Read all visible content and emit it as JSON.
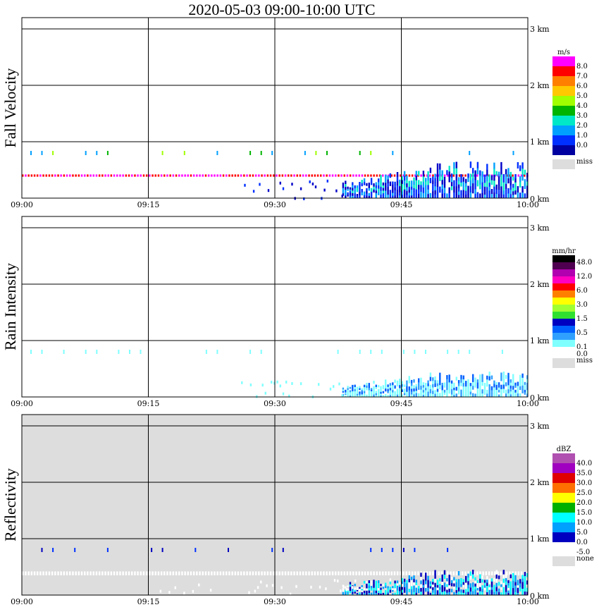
{
  "title": "2020-05-03   09:00-10:00 UTC",
  "chart_data": [
    {
      "type": "heatmap",
      "panel_title": "Fall Velocity",
      "x_ticks": [
        "09:00",
        "09:15",
        "09:30",
        "09:45",
        "10:00"
      ],
      "y_ticks": [
        "1 km",
        "2 km",
        "3 km"
      ],
      "y_zero_tick": "0 km",
      "unit": "m/s",
      "colorbar": [
        {
          "label": "8.0",
          "color": "#ff00ff"
        },
        {
          "label": "7.0",
          "color": "#ff0000"
        },
        {
          "label": "6.0",
          "color": "#ff7f00"
        },
        {
          "label": "5.0",
          "color": "#ffc800"
        },
        {
          "label": "4.0",
          "color": "#a0ff00"
        },
        {
          "label": "3.0",
          "color": "#00b400"
        },
        {
          "label": "2.0",
          "color": "#00e8c8"
        },
        {
          "label": "1.0",
          "color": "#00a0ff"
        },
        {
          "label": "0.0",
          "color": "#0030ff"
        },
        {
          "label": "",
          "color": "#0000a0"
        }
      ],
      "miss_label": "miss",
      "features": [
        {
          "kind": "band",
          "t0": 0,
          "t1": 60,
          "z0": 0.38,
          "z1": 0.42,
          "colors": [
            "#ff00ff",
            "#ff0000"
          ]
        },
        {
          "kind": "speckles",
          "t0": 1,
          "t1": 59,
          "z": 0.8,
          "colors": [
            "#a0ff00",
            "#00b400",
            "#00a0ff"
          ]
        },
        {
          "kind": "precip",
          "t0": 38,
          "t1": 60,
          "ztop": 0.65,
          "colors": [
            "#0000c8",
            "#0030ff",
            "#00a0ff",
            "#00e8c8"
          ]
        },
        {
          "kind": "scatter",
          "t0": 26,
          "t1": 38,
          "ztop": 0.35,
          "colors": [
            "#0000c8",
            "#0030ff"
          ]
        }
      ]
    },
    {
      "type": "heatmap",
      "panel_title": "Rain Intensity",
      "x_ticks": [
        "09:00",
        "09:15",
        "09:30",
        "09:45",
        "10:00"
      ],
      "y_ticks": [
        "1 km",
        "2 km",
        "3 km"
      ],
      "y_zero_tick": "0 km",
      "unit": "mm/hr",
      "colorbar": [
        {
          "label": "48.0",
          "color": "#000000"
        },
        {
          "label": "",
          "color": "#500050"
        },
        {
          "label": "12.0",
          "color": "#b000b0"
        },
        {
          "label": "",
          "color": "#ff00c0"
        },
        {
          "label": "6.0",
          "color": "#ff0000"
        },
        {
          "label": "",
          "color": "#ff8000"
        },
        {
          "label": "3.0",
          "color": "#ffff00"
        },
        {
          "label": "",
          "color": "#a0ff30"
        },
        {
          "label": "1.5",
          "color": "#30e030"
        },
        {
          "label": "",
          "color": "#0000c0"
        },
        {
          "label": "0.5",
          "color": "#0060ff"
        },
        {
          "label": "",
          "color": "#30a0ff"
        },
        {
          "label": "0.1",
          "color": "#80ffff"
        },
        {
          "label": "0.0",
          "color": "#ffffff"
        }
      ],
      "miss_label": "miss",
      "features": [
        {
          "kind": "speckles",
          "t0": 1,
          "t1": 59,
          "z": 0.8,
          "colors": [
            "#80ffff"
          ]
        },
        {
          "kind": "precip",
          "t0": 38,
          "t1": 60,
          "ztop": 0.45,
          "colors": [
            "#80ffff",
            "#80ffff",
            "#30a0ff",
            "#0060ff"
          ]
        },
        {
          "kind": "scatter",
          "t0": 26,
          "t1": 38,
          "ztop": 0.3,
          "colors": [
            "#80ffff"
          ]
        }
      ]
    },
    {
      "type": "heatmap",
      "panel_title": "Reflectivity",
      "x_ticks": [
        "09:00",
        "09:15",
        "09:30",
        "09:45",
        "10:00"
      ],
      "y_ticks": [
        "1 km",
        "2 km",
        "3 km"
      ],
      "y_zero_tick": "0 km",
      "unit": "dBZ",
      "colorbar": [
        {
          "label": "40.0",
          "color": "#b050b0"
        },
        {
          "label": "35.0",
          "color": "#a000c0"
        },
        {
          "label": "30.0",
          "color": "#e00000"
        },
        {
          "label": "25.0",
          "color": "#ff7000"
        },
        {
          "label": "20.0",
          "color": "#ffff00"
        },
        {
          "label": "15.0",
          "color": "#00b000"
        },
        {
          "label": "10.0",
          "color": "#00ffff"
        },
        {
          "label": "5.0",
          "color": "#00a0ff"
        },
        {
          "label": "0.0",
          "color": "#0000c0"
        },
        {
          "label": "-5.0",
          "color": "#ffffff"
        }
      ],
      "miss_label": "none",
      "background": "#dddddd",
      "features": [
        {
          "kind": "speckles",
          "t0": 1,
          "t1": 59,
          "z": 0.8,
          "colors": [
            "#0000c0",
            "#0030ff"
          ]
        },
        {
          "kind": "band",
          "t0": 0,
          "t1": 60,
          "z0": 0.35,
          "z1": 0.42,
          "colors": [
            "#ffffff"
          ]
        },
        {
          "kind": "precip",
          "t0": 38,
          "t1": 60,
          "ztop": 0.45,
          "colors": [
            "#0000c0",
            "#00a0ff",
            "#00ffff",
            "#ffffff"
          ]
        },
        {
          "kind": "scatter",
          "t0": 16,
          "t1": 40,
          "ztop": 0.3,
          "colors": [
            "#ffffff"
          ]
        }
      ]
    }
  ]
}
